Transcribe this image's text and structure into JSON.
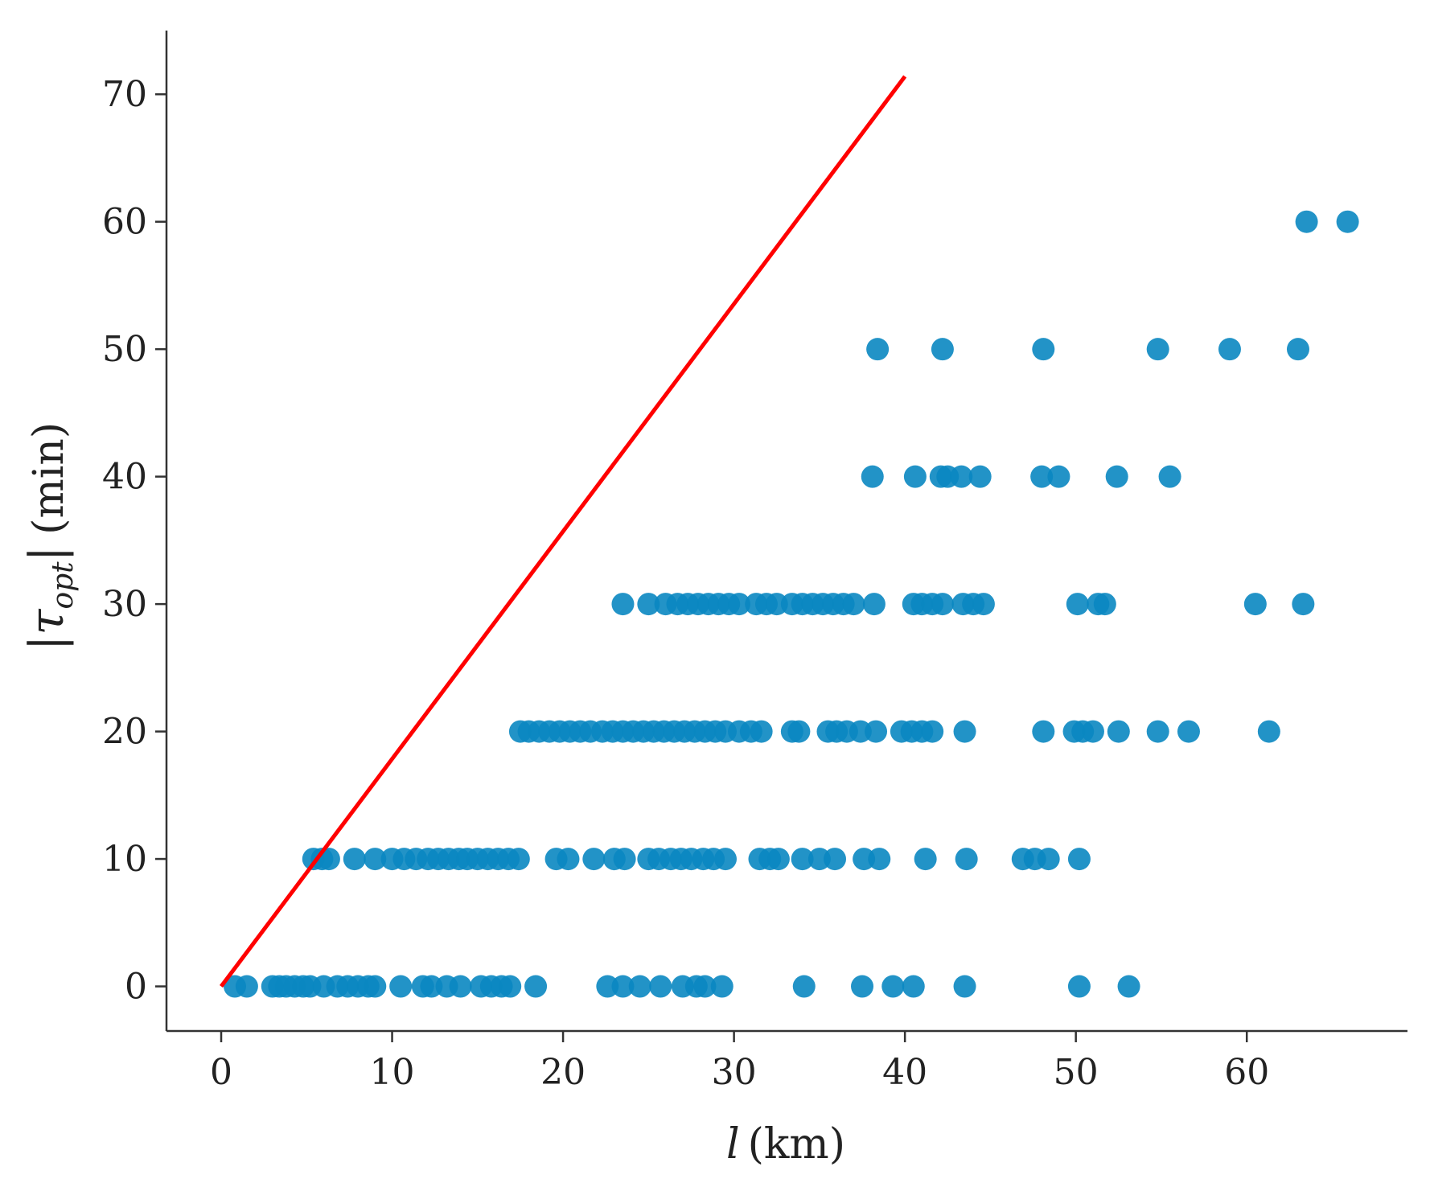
{
  "chart_data": {
    "type": "scatter",
    "xlabel_var": "l",
    "xlabel_unit": "(km)",
    "ylabel_var": "τ",
    "ylabel_sub": "opt",
    "ylabel_unit": "(min)",
    "xlim": [
      -3.2,
      69.4
    ],
    "ylim": [
      -3.5,
      75
    ],
    "x_ticks": [
      0,
      10,
      20,
      30,
      40,
      50,
      60
    ],
    "y_ticks": [
      0,
      10,
      20,
      30,
      40,
      50,
      60,
      70
    ],
    "grid": false,
    "colors": {
      "points": "#0a87c1",
      "line": "#ff0000"
    },
    "line": {
      "x": [
        0,
        40
      ],
      "y": [
        0,
        71.4
      ]
    },
    "points": [
      {
        "y": 0,
        "x": [
          0.8,
          1.5,
          3.0,
          3.4,
          3.8,
          4.3,
          4.8,
          5.2,
          6.0,
          6.8,
          7.4,
          8.0,
          8.6,
          9.0,
          10.5,
          11.8,
          12.3,
          13.2,
          14.0,
          15.2,
          15.8,
          16.4,
          16.9,
          18.4,
          22.6,
          23.5,
          24.5,
          25.7,
          27.0,
          27.8,
          28.3,
          29.3,
          34.1,
          37.5,
          39.3,
          40.5,
          43.5,
          50.2,
          53.1
        ]
      },
      {
        "y": 10,
        "x": [
          5.4,
          5.9,
          6.3,
          7.8,
          9.0,
          10.0,
          10.7,
          11.4,
          12.1,
          12.7,
          13.3,
          13.9,
          14.4,
          15.0,
          15.6,
          16.2,
          16.8,
          17.4,
          19.6,
          20.3,
          21.8,
          23.0,
          23.6,
          25.0,
          25.6,
          26.3,
          26.9,
          27.5,
          28.2,
          28.8,
          29.5,
          31.5,
          32.1,
          32.6,
          34.0,
          35.0,
          35.9,
          37.6,
          38.5,
          41.2,
          43.6,
          46.9,
          47.6,
          48.4,
          50.2
        ]
      },
      {
        "y": 20,
        "x": [
          17.5,
          18.0,
          18.6,
          19.2,
          19.8,
          20.4,
          21.0,
          21.6,
          22.3,
          22.9,
          23.5,
          24.1,
          24.7,
          25.3,
          25.9,
          26.5,
          27.1,
          27.7,
          28.3,
          28.9,
          29.5,
          30.3,
          31.0,
          31.6,
          33.4,
          33.8,
          35.5,
          36.0,
          36.6,
          37.4,
          38.3,
          39.8,
          40.4,
          41.0,
          41.6,
          43.5,
          48.1,
          49.9,
          50.4,
          51.0,
          52.5,
          54.8,
          56.6,
          61.3
        ]
      },
      {
        "y": 30,
        "x": [
          23.5,
          25.0,
          26.0,
          26.7,
          27.3,
          27.9,
          28.5,
          29.1,
          29.7,
          30.3,
          31.3,
          31.9,
          32.5,
          33.4,
          34.0,
          34.6,
          35.2,
          35.8,
          36.4,
          37.0,
          38.2,
          40.5,
          41.0,
          41.6,
          42.2,
          43.4,
          44.0,
          44.6,
          50.1,
          51.3,
          51.7,
          60.5,
          63.3
        ]
      },
      {
        "y": 40,
        "x": [
          38.1,
          40.6,
          42.1,
          42.5,
          43.3,
          44.4,
          48.0,
          49.0,
          52.4,
          55.5
        ]
      },
      {
        "y": 50,
        "x": [
          38.4,
          42.2,
          48.1,
          54.8,
          59.0,
          63.0
        ]
      },
      {
        "y": 60,
        "x": [
          63.5,
          65.9
        ]
      }
    ]
  }
}
